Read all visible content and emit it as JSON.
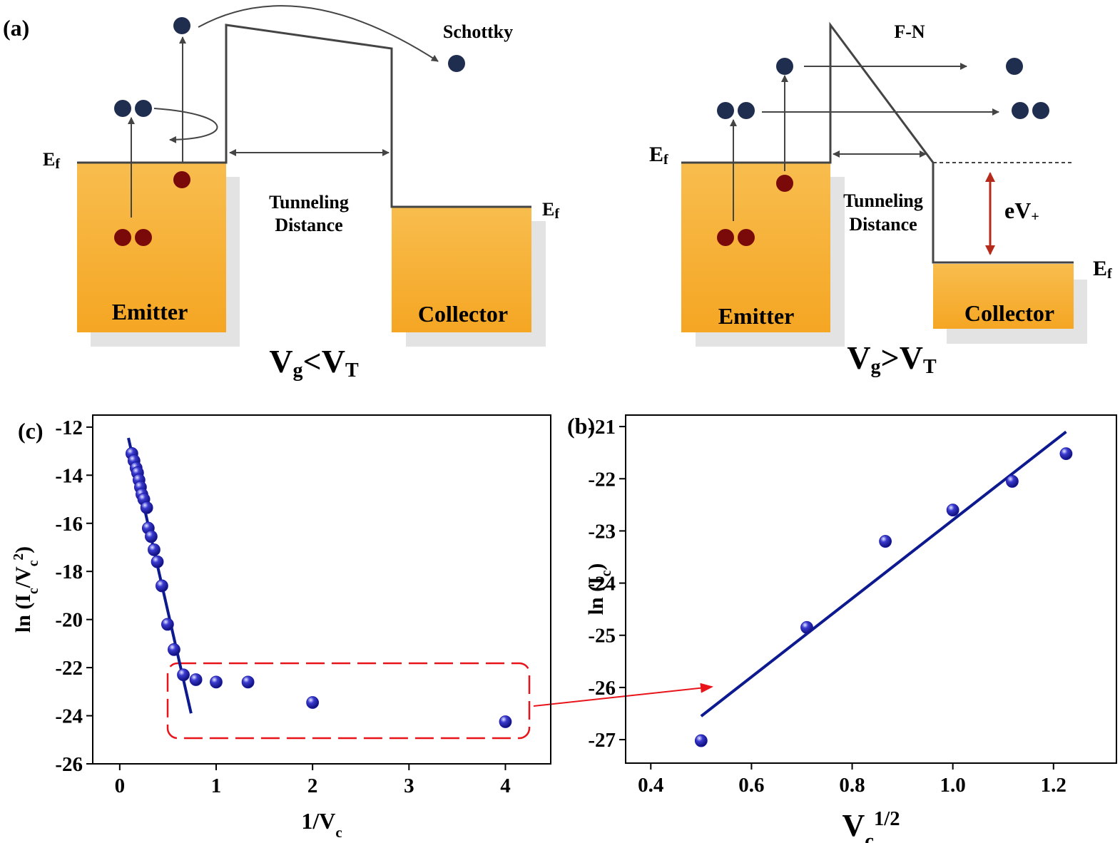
{
  "diagram": {
    "panel_label": "(a)",
    "left": {
      "ef_emitter": [
        "E",
        "f"
      ],
      "ef_collector": [
        "E",
        "f"
      ],
      "mechanism": "Schottky",
      "tunneling": [
        "Tunneling",
        "Distance"
      ],
      "emitter": "Emitter",
      "collector": "Collector",
      "condition": [
        "V",
        "g",
        "<V",
        "T"
      ]
    },
    "right": {
      "ef_emitter": [
        "E",
        "f"
      ],
      "ef_collector": [
        "E",
        "f"
      ],
      "mechanism": "F-N",
      "tunneling": [
        "Tunneling",
        "Distance"
      ],
      "emitter": "Emitter",
      "collector": "Collector",
      "energy": [
        "eV",
        "+"
      ],
      "condition": [
        "V",
        "g",
        ">V",
        "T"
      ]
    }
  },
  "chart_data": [
    {
      "type": "scatter",
      "panel_label": "(c)",
      "x_label": [
        {
          "text": "1/V",
          "shift": "none"
        },
        {
          "text": "c",
          "shift": "sub"
        }
      ],
      "y_label": [
        {
          "text": "ln (I",
          "shift": "none"
        },
        {
          "text": "c",
          "shift": "sub"
        },
        {
          "text": "/V",
          "shift": "none"
        },
        {
          "text": "c",
          "shift": "sub"
        },
        {
          "text": "2",
          "shift": "super"
        },
        {
          "text": ")",
          "shift": "none"
        }
      ],
      "xlim": [
        -0.28,
        4.47
      ],
      "ylim": [
        -26,
        -11.5
      ],
      "xticks": [
        0,
        1,
        2,
        3,
        4
      ],
      "yticks": [
        -26,
        -24,
        -22,
        -20,
        -18,
        -16,
        -14,
        -12
      ],
      "series": [
        {
          "mode": "markers",
          "color": "#1a1aa8",
          "x": [
            0.126,
            0.148,
            0.17,
            0.185,
            0.2,
            0.215,
            0.23,
            0.25,
            0.28,
            0.296,
            0.326,
            0.356,
            0.39,
            0.437,
            0.496,
            0.563,
            0.66,
            0.79,
            1.0,
            1.33,
            2.0,
            4.0
          ],
          "values": [
            -13.1,
            -13.4,
            -13.7,
            -13.9,
            -14.2,
            -14.5,
            -14.8,
            -15.0,
            -15.35,
            -16.2,
            -16.55,
            -17.1,
            -17.6,
            -18.6,
            -20.2,
            -21.25,
            -22.3,
            -22.5,
            -22.6,
            -22.6,
            -23.45,
            -24.25
          ]
        },
        {
          "mode": "line",
          "color": "#0d1a8f",
          "x": [
            0.09,
            0.74
          ],
          "values": [
            -12.45,
            -23.9
          ]
        }
      ]
    },
    {
      "type": "scatter",
      "panel_label": "(b)",
      "x_label": [
        {
          "text": "V",
          "shift": "none"
        },
        {
          "text": "c",
          "shift": "sub"
        },
        {
          "text": "1/2",
          "shift": "super"
        }
      ],
      "y_label": [
        {
          "text": "ln (I",
          "shift": "none"
        },
        {
          "text": "c",
          "shift": "sub"
        },
        {
          "text": ")",
          "shift": "none"
        }
      ],
      "xlim": [
        0.35,
        1.325
      ],
      "ylim": [
        -27.45,
        -20.78
      ],
      "xticks": [
        0.4,
        0.6,
        0.8,
        {
          "value": 1,
          "label": "1.0"
        },
        1.2
      ],
      "yticks": [
        -27,
        -26,
        -25,
        -24,
        -23,
        -22,
        -21
      ],
      "series": [
        {
          "mode": "markers",
          "color": "#1a1aa8",
          "x": [
            0.5,
            0.71,
            0.866,
            1.0,
            1.118,
            1.225
          ],
          "values": [
            -27.02,
            -24.85,
            -23.2,
            -22.6,
            -22.05,
            -21.52
          ]
        },
        {
          "mode": "line",
          "color": "#0d1a8f",
          "x": [
            0.5,
            1.225
          ],
          "values": [
            -26.55,
            -21.1
          ]
        }
      ]
    }
  ]
}
